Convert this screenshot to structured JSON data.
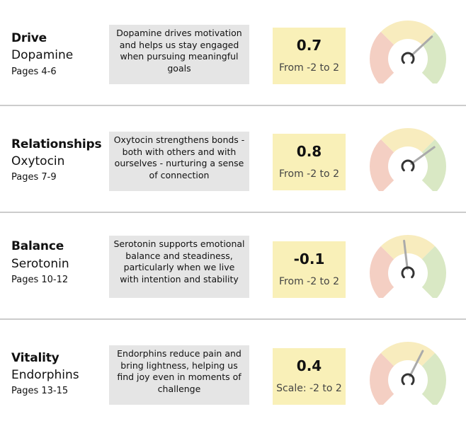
{
  "rows": [
    {
      "title": "Drive",
      "hormone": "Dopamine",
      "pages": "Pages 4-6",
      "description": "Dopamine drives motivation and helps us stay engaged when pursuing meaningful goals",
      "score_label": "0.7",
      "score": 0.7,
      "range": "From -2 to 2",
      "scale_min": -2,
      "scale_max": 2
    },
    {
      "title": "Relationships",
      "hormone": "Oxytocin",
      "pages": "Pages 7-9",
      "description": "Oxytocin strengthens bonds - both with others and with ourselves - nurturing a sense of connection",
      "score_label": "0.8",
      "score": 0.8,
      "range": "From -2 to 2",
      "scale_min": -2,
      "scale_max": 2
    },
    {
      "title": "Balance",
      "hormone": "Serotonin",
      "pages": "Pages 10-12",
      "description": "Serotonin supports emotional balance and steadiness, particularly when we live with intention and stability",
      "score_label": "-0.1",
      "score": -0.1,
      "range": "From -2 to 2",
      "scale_min": -2,
      "scale_max": 2
    },
    {
      "title": "Vitality",
      "hormone": "Endorphins",
      "pages": "Pages 13-15",
      "description": "Endorphins reduce pain and bring lightness, helping us find joy even in moments of challenge",
      "score_label": "0.4",
      "score": 0.4,
      "range": "Scale: -2 to 2",
      "scale_min": -2,
      "scale_max": 2
    }
  ],
  "gauge_colors": {
    "low": "#f4cfc3",
    "mid": "#f8ecbe",
    "high": "#d9e8c4",
    "needle": "#aaaaaa",
    "hub": "#333333"
  }
}
